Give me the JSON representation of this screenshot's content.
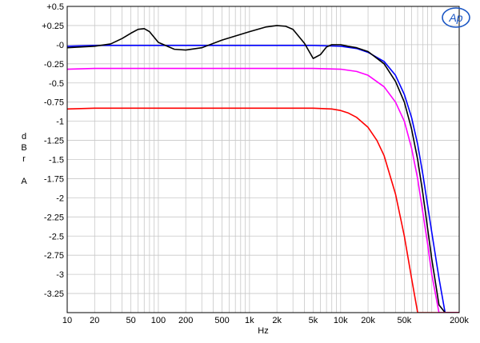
{
  "chart_data": {
    "type": "line",
    "title": "",
    "xlabel": "Hz",
    "ylabel": [
      "d",
      "B",
      "r",
      "A"
    ],
    "x_scale": "log",
    "xlim": [
      10,
      200000
    ],
    "ylim": [
      -3.5,
      0.5
    ],
    "grid": true,
    "logo_text": "Ap",
    "x_ticks": [
      {
        "value": 10,
        "label": "10"
      },
      {
        "value": 20,
        "label": "20"
      },
      {
        "value": 50,
        "label": "50"
      },
      {
        "value": 100,
        "label": "100"
      },
      {
        "value": 200,
        "label": "200"
      },
      {
        "value": 500,
        "label": "500"
      },
      {
        "value": 1000,
        "label": "1k"
      },
      {
        "value": 2000,
        "label": "2k"
      },
      {
        "value": 5000,
        "label": "5k"
      },
      {
        "value": 10000,
        "label": "10k"
      },
      {
        "value": 20000,
        "label": "20k"
      },
      {
        "value": 50000,
        "label": "50k"
      },
      {
        "value": 200000,
        "label": "200k"
      }
    ],
    "y_ticks": [
      {
        "value": 0.5,
        "label": "+0.5"
      },
      {
        "value": 0.25,
        "label": "+0.25"
      },
      {
        "value": 0,
        "label": "-0"
      },
      {
        "value": -0.25,
        "label": "-0.25"
      },
      {
        "value": -0.5,
        "label": "-0.5"
      },
      {
        "value": -0.75,
        "label": "-0.75"
      },
      {
        "value": -1,
        "label": "-1"
      },
      {
        "value": -1.25,
        "label": "-1.25"
      },
      {
        "value": -1.5,
        "label": "-1.5"
      },
      {
        "value": -1.75,
        "label": "-1.75"
      },
      {
        "value": -2,
        "label": "-2"
      },
      {
        "value": -2.25,
        "label": "-2.25"
      },
      {
        "value": -2.5,
        "label": "-2.5"
      },
      {
        "value": -2.75,
        "label": "-2.75"
      },
      {
        "value": -3,
        "label": "-3"
      },
      {
        "value": -3.25,
        "label": "-3.25"
      }
    ],
    "series": [
      {
        "color": "#0000ff",
        "x": [
          10,
          20,
          30,
          50,
          100,
          200,
          500,
          1000,
          2000,
          5000,
          10000,
          15000,
          20000,
          30000,
          40000,
          50000,
          60000,
          70000,
          80000,
          100000,
          120000,
          140000,
          160000,
          180000,
          200000
        ],
        "y": [
          -0.02,
          -0.01,
          -0.01,
          -0.01,
          -0.01,
          -0.01,
          -0.01,
          -0.01,
          -0.01,
          -0.01,
          -0.02,
          -0.05,
          -0.1,
          -0.22,
          -0.4,
          -0.65,
          -0.95,
          -1.3,
          -1.7,
          -2.45,
          -3.05,
          -3.5,
          -3.5,
          -3.5,
          -3.5
        ]
      },
      {
        "color": "#000000",
        "x": [
          10,
          20,
          30,
          40,
          50,
          60,
          70,
          80,
          100,
          150,
          200,
          300,
          500,
          1000,
          1500,
          2000,
          2500,
          3000,
          4000,
          5000,
          6000,
          7000,
          8000,
          10000,
          12000,
          15000,
          20000,
          30000,
          40000,
          50000,
          60000,
          70000,
          80000,
          100000,
          120000,
          140000,
          160000,
          200000
        ],
        "y": [
          -0.04,
          -0.02,
          0.01,
          0.08,
          0.15,
          0.2,
          0.21,
          0.17,
          0.03,
          -0.06,
          -0.07,
          -0.04,
          0.06,
          0.17,
          0.23,
          0.25,
          0.24,
          0.2,
          0.02,
          -0.18,
          -0.13,
          -0.03,
          0.0,
          0.0,
          -0.02,
          -0.04,
          -0.09,
          -0.25,
          -0.48,
          -0.75,
          -1.1,
          -1.5,
          -1.95,
          -2.8,
          -3.4,
          -3.5,
          -3.5,
          -3.5
        ]
      },
      {
        "color": "#ff00ff",
        "x": [
          10,
          20,
          50,
          100,
          200,
          500,
          1000,
          2000,
          5000,
          10000,
          15000,
          20000,
          30000,
          40000,
          50000,
          60000,
          70000,
          80000,
          90000,
          100000,
          120000,
          140000,
          200000
        ],
        "y": [
          -0.32,
          -0.31,
          -0.31,
          -0.31,
          -0.31,
          -0.31,
          -0.31,
          -0.31,
          -0.31,
          -0.32,
          -0.35,
          -0.4,
          -0.55,
          -0.75,
          -1.0,
          -1.35,
          -1.75,
          -2.2,
          -2.6,
          -3.0,
          -3.5,
          -3.5,
          -3.5
        ]
      },
      {
        "color": "#ff0000",
        "x": [
          10,
          20,
          50,
          100,
          200,
          500,
          1000,
          2000,
          5000,
          8000,
          10000,
          12000,
          15000,
          20000,
          25000,
          30000,
          40000,
          50000,
          60000,
          70000,
          80000,
          100000,
          200000
        ],
        "y": [
          -0.84,
          -0.83,
          -0.83,
          -0.83,
          -0.83,
          -0.83,
          -0.83,
          -0.83,
          -0.83,
          -0.84,
          -0.86,
          -0.89,
          -0.95,
          -1.08,
          -1.25,
          -1.45,
          -1.95,
          -2.5,
          -3.05,
          -3.5,
          -3.5,
          -3.5,
          -3.5
        ]
      }
    ]
  }
}
